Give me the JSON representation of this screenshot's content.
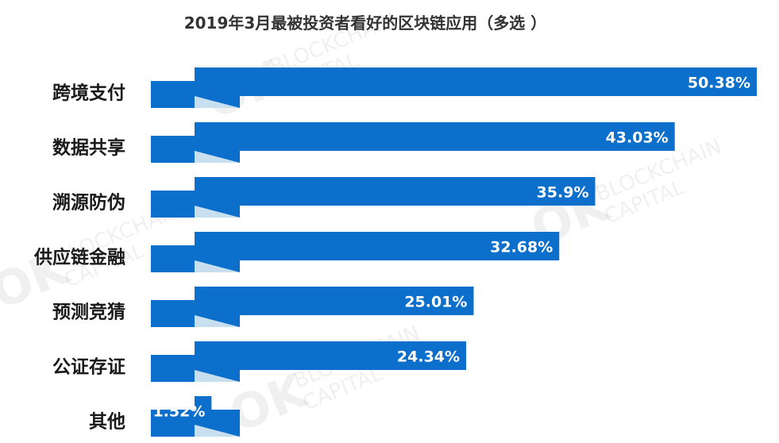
{
  "watermark": {
    "logo": "OK",
    "line1": "BLOCKCHAIN",
    "line2": "CAPITAL"
  },
  "colors": {
    "bar": "#0b6fcb",
    "shade": "#c8dff0",
    "label": "#1a1a1a"
  },
  "chart_data": {
    "type": "bar",
    "orientation": "horizontal",
    "title": "2019年3月最被投资者看好的区块链应用（多选 ）",
    "categories": [
      "跨境支付",
      "数据共享",
      "溯源防伪",
      "供应链金融",
      "预测竞猜",
      "公证存证",
      "其他"
    ],
    "values": [
      50.38,
      43.03,
      35.9,
      32.68,
      25.01,
      24.34,
      1.52
    ],
    "value_labels": [
      "50.38%",
      "43.03%",
      "35.9%",
      "32.68%",
      "25.01%",
      "24.34%",
      "1.52%"
    ],
    "unit": "%",
    "grid": false,
    "legend": "none"
  }
}
